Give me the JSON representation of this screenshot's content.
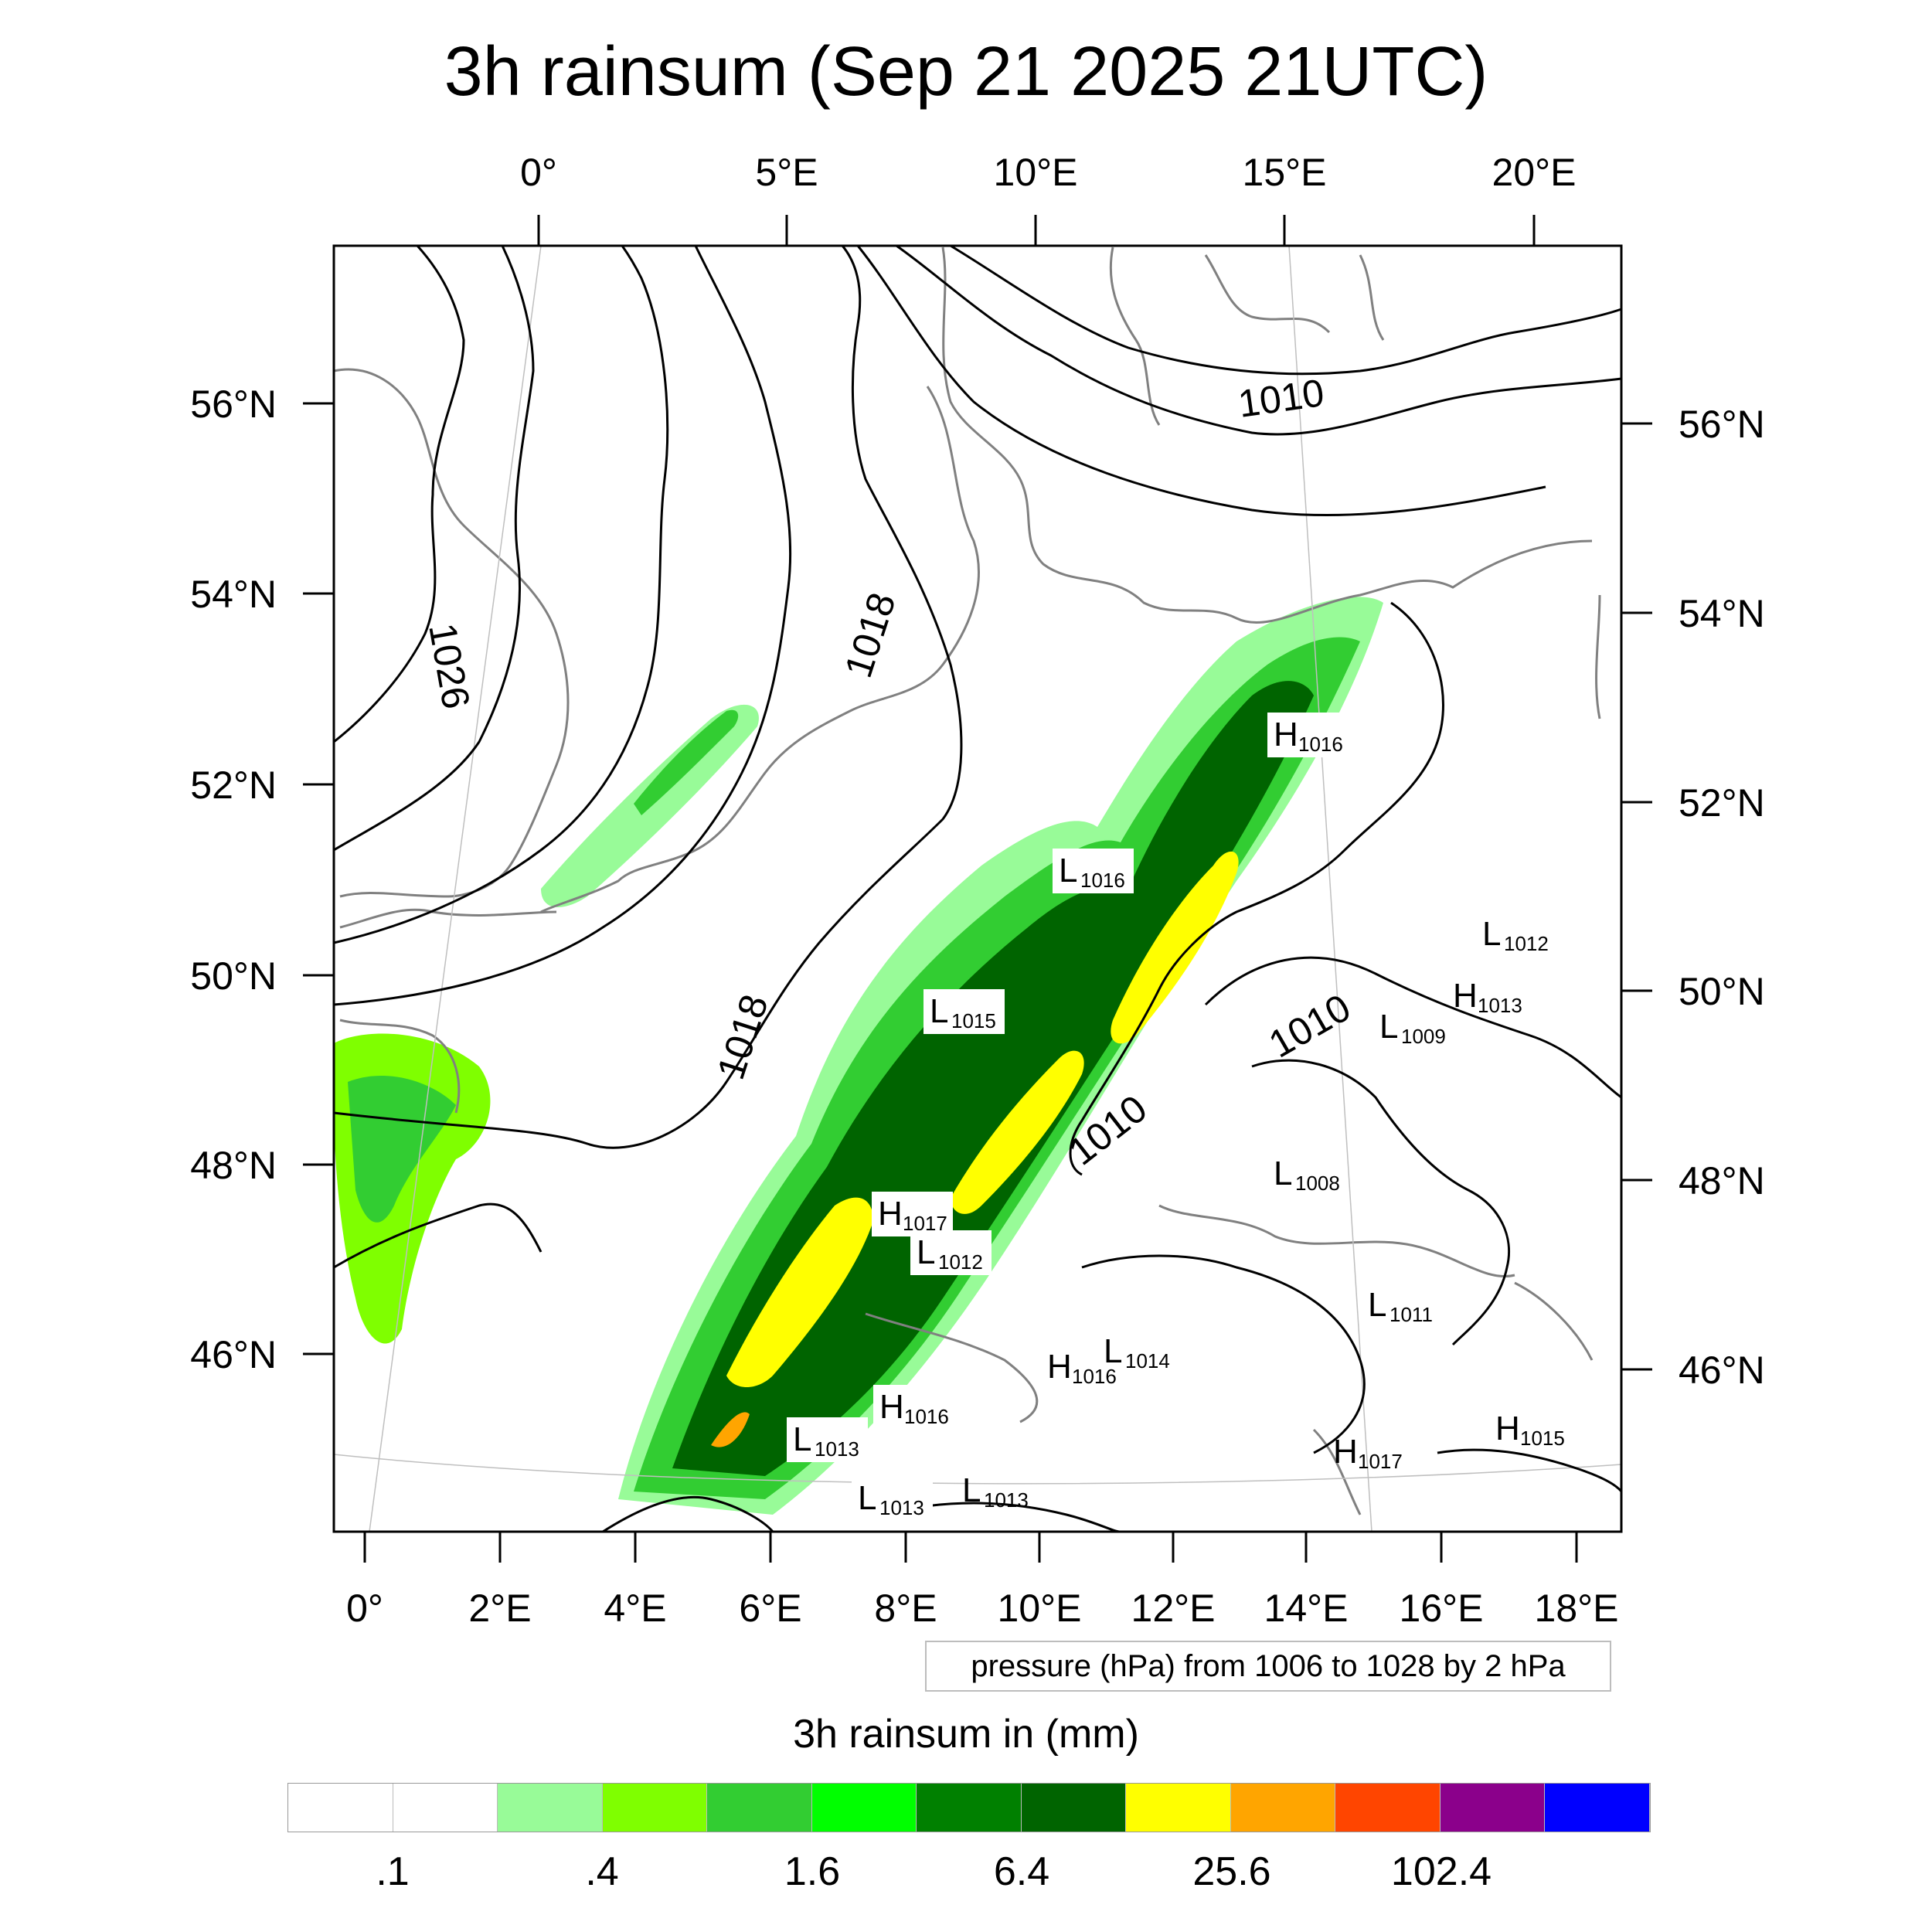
{
  "title": "3h rainsum (Sep 21 2025 21UTC)",
  "top_lon_labels": [
    "0°",
    "5°E",
    "10°E",
    "15°E",
    "20°E"
  ],
  "bottom_lon_labels": [
    "0°",
    "2°E",
    "4°E",
    "6°E",
    "8°E",
    "10°E",
    "12°E",
    "14°E",
    "16°E",
    "18°E"
  ],
  "left_lat_labels": [
    "56°N",
    "54°N",
    "52°N",
    "50°N",
    "48°N",
    "46°N"
  ],
  "right_lat_labels": [
    "56°N",
    "54°N",
    "52°N",
    "50°N",
    "48°N",
    "46°N"
  ],
  "isobar_labels": [
    "1026",
    "1018",
    "1018",
    "1010",
    "1010",
    "1010"
  ],
  "pressure_centers": [
    {
      "type": "H",
      "value": "1016"
    },
    {
      "type": "L",
      "value": "1016"
    },
    {
      "type": "L",
      "value": "1015"
    },
    {
      "type": "H",
      "value": "1017"
    },
    {
      "type": "L",
      "value": "1012"
    },
    {
      "type": "H",
      "value": "1016"
    },
    {
      "type": "L",
      "value": "1013"
    },
    {
      "type": "L",
      "value": "1013"
    },
    {
      "type": "L",
      "value": "1013"
    },
    {
      "type": "H",
      "value": "1016"
    },
    {
      "type": "L",
      "value": "1014"
    },
    {
      "type": "L",
      "value": "1012"
    },
    {
      "type": "H",
      "value": "1013"
    },
    {
      "type": "L",
      "value": "1009"
    },
    {
      "type": "L",
      "value": "1008"
    },
    {
      "type": "L",
      "value": "1011"
    },
    {
      "type": "H",
      "value": "1017"
    },
    {
      "type": "H",
      "value": "1015"
    }
  ],
  "pressure_note": "pressure (hPa) from 1006 to 1028 by 2 hPa",
  "colorbar": {
    "title": "3h rainsum in (mm)",
    "colors": [
      "#ffffff",
      "#ffffff",
      "#98fb98",
      "#7fff00",
      "#32cd32",
      "#00ff00",
      "#008000",
      "#006400",
      "#ffff00",
      "#ffa500",
      "#ff4500",
      "#8b008b",
      "#0000ff"
    ],
    "labels": [
      ".1",
      ".4",
      "1.6",
      "6.4",
      "25.6",
      "102.4"
    ]
  }
}
